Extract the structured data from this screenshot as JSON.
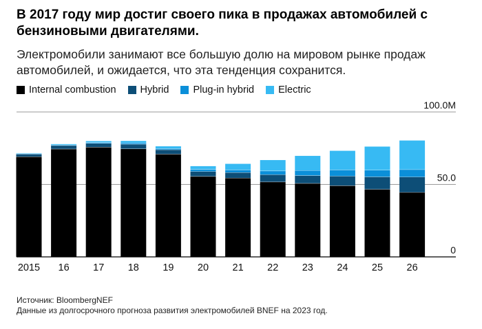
{
  "header": {
    "title": "В 2017 году мир достиг своего пика в продажах автомобилей с бензиновыми двигателями.",
    "subtitle": "Электромобили занимают все большую долю на мировом рынке продаж автомобилей, и ожидается, что эта тенденция сохранится."
  },
  "chart_data": {
    "type": "bar",
    "stacked": true,
    "categories": [
      "2015",
      "16",
      "17",
      "18",
      "19",
      "20",
      "21",
      "22",
      "23",
      "24",
      "25",
      "26"
    ],
    "series": [
      {
        "name": "Internal combustion",
        "color": "#000000",
        "values": [
          69.2,
          74.5,
          75.8,
          74.6,
          71.0,
          55.6,
          54.5,
          51.8,
          50.8,
          49.2,
          46.7,
          44.6
        ]
      },
      {
        "name": "Hybrid",
        "color": "#0d4e77",
        "values": [
          1.8,
          2.4,
          2.6,
          3.2,
          3.0,
          3.4,
          3.8,
          5.0,
          5.4,
          6.6,
          8.6,
          10.6
        ]
      },
      {
        "name": "Plug-in hybrid",
        "color": "#0b8fd9",
        "values": [
          0.3,
          0.4,
          0.6,
          0.9,
          0.8,
          1.4,
          1.8,
          2.6,
          3.5,
          4.3,
          4.6,
          5.1
        ]
      },
      {
        "name": "Electric",
        "color": "#37baf3",
        "values": [
          0.3,
          0.5,
          0.9,
          1.3,
          1.5,
          2.2,
          4.1,
          7.4,
          10.0,
          13.1,
          16.2,
          20.0
        ]
      }
    ],
    "ylim": [
      0,
      100
    ],
    "y_ticks": [
      {
        "value": 0,
        "label": "0"
      },
      {
        "value": 50,
        "label": "50.0"
      },
      {
        "value": 100,
        "label": "100.0M"
      }
    ],
    "legend_position": "top-left",
    "source_lines": [
      "Источник: BloombergNEF",
      "Данные из долгосрочного прогноза развития электромобилей BNEF на 2023 год."
    ]
  }
}
